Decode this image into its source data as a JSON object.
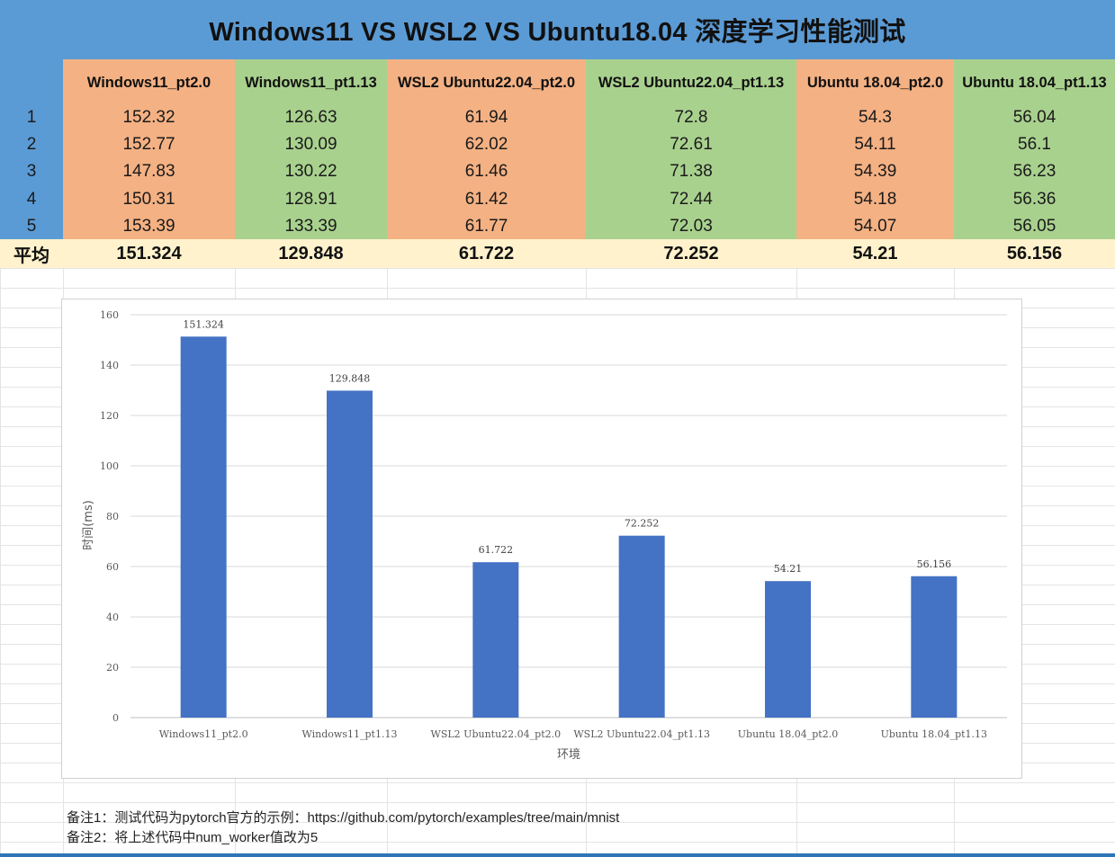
{
  "title": "Windows11 VS WSL2 VS Ubuntu18.04 深度学习性能测试",
  "table": {
    "columns": [
      {
        "header": "Windows11_pt2.0",
        "color": "#f4b183",
        "values": [
          "152.32",
          "152.77",
          "147.83",
          "150.31",
          "153.39"
        ],
        "average": "151.324"
      },
      {
        "header": "Windows11_pt1.13",
        "color": "#a9d18e",
        "values": [
          "126.63",
          "130.09",
          "130.22",
          "128.91",
          "133.39"
        ],
        "average": "129.848"
      },
      {
        "header": "WSL2 Ubuntu22.04_pt2.0",
        "color": "#f4b183",
        "values": [
          "61.94",
          "62.02",
          "61.46",
          "61.42",
          "61.77"
        ],
        "average": "61.722"
      },
      {
        "header": "WSL2 Ubuntu22.04_pt1.13",
        "color": "#a9d18e",
        "values": [
          "72.8",
          "72.61",
          "71.38",
          "72.44",
          "72.03"
        ],
        "average": "72.252"
      },
      {
        "header": "Ubuntu 18.04_pt2.0",
        "color": "#f4b183",
        "values": [
          "54.3",
          "54.11",
          "54.39",
          "54.18",
          "54.07"
        ],
        "average": "54.21"
      },
      {
        "header": "Ubuntu 18.04_pt1.13",
        "color": "#a9d18e",
        "values": [
          "56.04",
          "56.1",
          "56.23",
          "56.36",
          "56.05"
        ],
        "average": "56.156"
      }
    ],
    "row_labels": [
      "1",
      "2",
      "3",
      "4",
      "5"
    ],
    "average_label": "平均"
  },
  "chart_data": {
    "type": "bar",
    "categories": [
      "Windows11_pt2.0",
      "Windows11_pt1.13",
      "WSL2 Ubuntu22.04_pt2.0",
      "WSL2 Ubuntu22.04_pt1.13",
      "Ubuntu 18.04_pt2.0",
      "Ubuntu 18.04_pt1.13"
    ],
    "values": [
      151.324,
      129.848,
      61.722,
      72.252,
      54.21,
      56.156
    ],
    "data_labels": [
      "151.324",
      "129.848",
      "61.722",
      "72.252",
      "54.21",
      "56.156"
    ],
    "xlabel": "环境",
    "ylabel": "时间(ms)",
    "ylim": [
      0,
      160
    ],
    "yticks": [
      0,
      20,
      40,
      60,
      80,
      100,
      120,
      140,
      160
    ],
    "bar_color": "#4472c4",
    "grid": true,
    "legend": "none"
  },
  "notes": [
    "备注1：测试代码为pytorch官方的示例：https://github.com/pytorch/examples/tree/main/mnist",
    "备注2：将上述代码中num_worker值改为5"
  ]
}
